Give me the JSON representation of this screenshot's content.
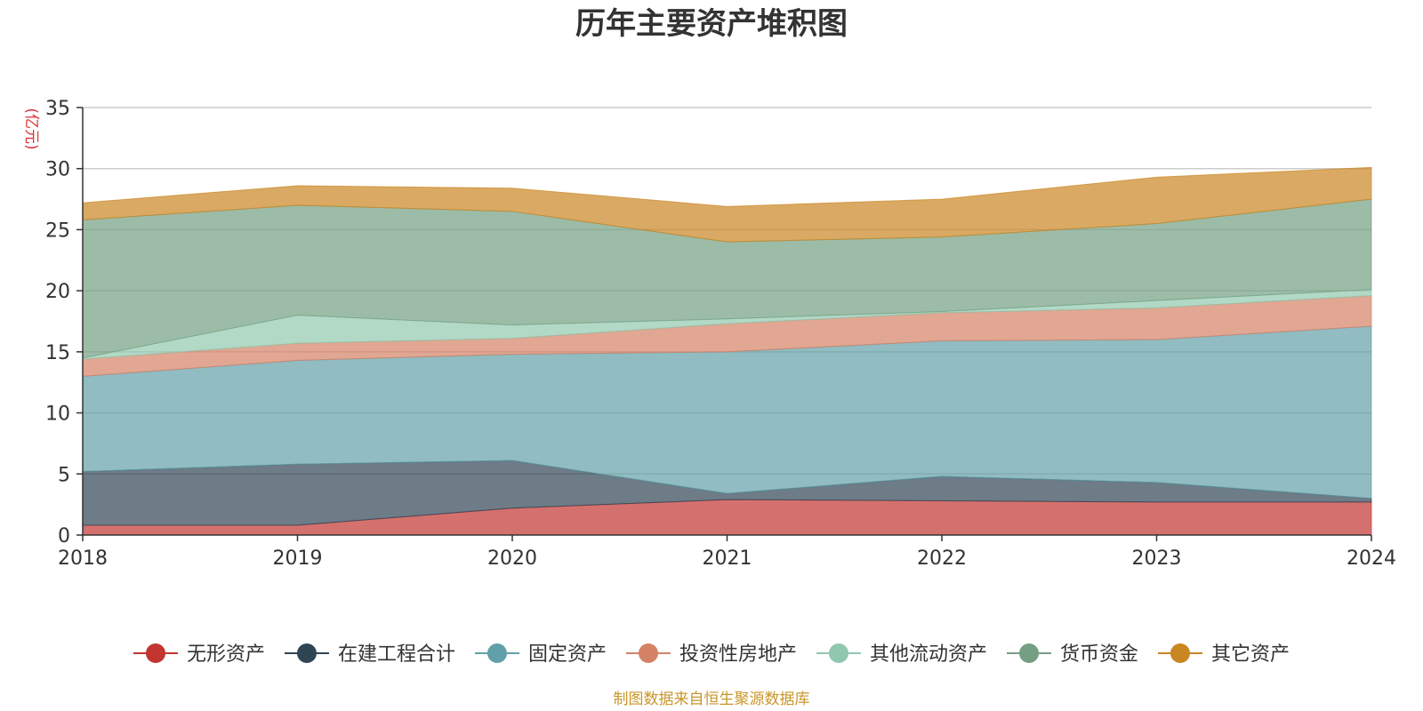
{
  "chart_data": {
    "type": "area",
    "stacked": true,
    "title": "历年主要资产堆积图",
    "unit_label": "(亿元)",
    "source": "制图数据来自恒生聚源数据库",
    "x": [
      "2018",
      "2019",
      "2020",
      "2021",
      "2022",
      "2023",
      "2024"
    ],
    "ylim": [
      0,
      35
    ],
    "yticks": [
      0,
      5,
      10,
      15,
      20,
      25,
      30,
      35
    ],
    "grid": true,
    "legend_position": "bottom",
    "series": [
      {
        "name": "无形资产",
        "color": "#c23531",
        "values": [
          0.8,
          0.8,
          2.2,
          2.9,
          2.8,
          2.7,
          2.7
        ]
      },
      {
        "name": "在建工程合计",
        "color": "#2f4554",
        "values": [
          4.4,
          5.0,
          3.9,
          0.5,
          2.0,
          1.6,
          0.3
        ]
      },
      {
        "name": "固定资产",
        "color": "#61a0a8",
        "values": [
          7.8,
          8.5,
          8.7,
          11.6,
          11.1,
          11.7,
          14.1
        ]
      },
      {
        "name": "投资性房地产",
        "color": "#d48265",
        "values": [
          1.4,
          1.4,
          1.3,
          2.3,
          2.3,
          2.6,
          2.5
        ]
      },
      {
        "name": "其他流动资产",
        "color": "#91c7ae",
        "values": [
          0.1,
          2.3,
          1.1,
          0.4,
          0.1,
          0.6,
          0.5
        ]
      },
      {
        "name": "货币资金",
        "color": "#749f83",
        "values": [
          11.3,
          9.0,
          9.3,
          6.3,
          6.1,
          6.3,
          7.4
        ]
      },
      {
        "name": "其它资产",
        "color": "#ca8622",
        "values": [
          1.4,
          1.6,
          1.9,
          2.9,
          3.1,
          3.8,
          2.6
        ]
      }
    ]
  }
}
